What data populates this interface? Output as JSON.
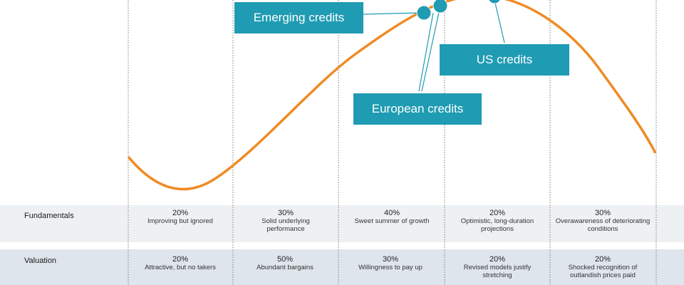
{
  "callouts": {
    "emerging": "Emerging credits",
    "us": "US credits",
    "european": "European credits"
  },
  "rows": [
    {
      "label": "Fundamentals",
      "cells": [
        {
          "pct": "20%",
          "desc": "Improving but ignored"
        },
        {
          "pct": "30%",
          "desc": "Solid underlying performance"
        },
        {
          "pct": "40%",
          "desc": "Sweet summer of growth"
        },
        {
          "pct": "20%",
          "desc": "Optimistic, long-duration projections"
        },
        {
          "pct": "30%",
          "desc": "Overawareness of deteriorating conditions"
        }
      ]
    },
    {
      "label": "Valuation",
      "cells": [
        {
          "pct": "20%",
          "desc": "Attractive, but no takers"
        },
        {
          "pct": "50%",
          "desc": "Abundant bargains"
        },
        {
          "pct": "30%",
          "desc": "Willingness to pay up"
        },
        {
          "pct": "20%",
          "desc": "Revised models justify stretching"
        },
        {
          "pct": "20%",
          "desc": "Shocked recognition of outlandish prices paid"
        }
      ]
    }
  ],
  "colors": {
    "curve": "#f08a24",
    "callout": "#1f9bb3",
    "marker": "#1f9bb3",
    "row_bg_fundamentals": "#eef1f4",
    "row_bg_valuation": "#dfe5ec"
  }
}
